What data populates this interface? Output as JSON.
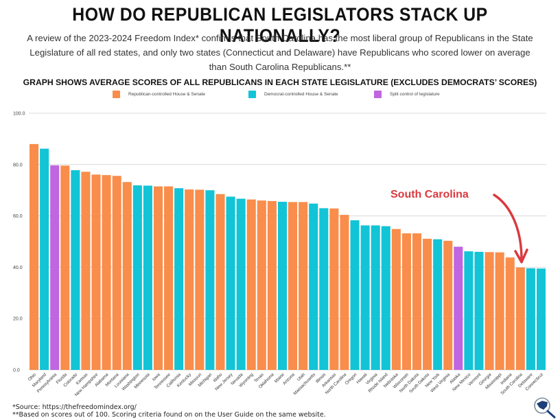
{
  "header": {
    "title": "HOW DO REPUBLICAN LEGISLATORS STACK UP NATIONALLY?",
    "intro": "A review of the 2023-2024 Freedom Index* confirms that South Carolina has the most liberal group of Republicans in the State Legislature of all red states, and only two states (Connecticut and Delaware) have Republicans who scored lower on average than South Carolina Republicans.**",
    "subtitle": "GRAPH SHOWS AVERAGE SCORES OF ALL REPUBLICANS IN EACH STATE LEGISLATURE (EXCLUDES DEMOCRATS’ SCORES)"
  },
  "legend": [
    {
      "key": "R",
      "label": "Republican-controlled House & Senate",
      "color": "#F98D4B"
    },
    {
      "key": "D",
      "label": "Democrat-controlled House & Senate",
      "color": "#12C4D6"
    },
    {
      "key": "S",
      "label": "Split control of legislature",
      "color": "#C066E0"
    }
  ],
  "annotation": {
    "label": "South Carolina",
    "color": "#D93A3F",
    "target": "South Carolina"
  },
  "footer": {
    "source": "*Source: https://thefreedomindex.org/",
    "note": "**Based on scores out of 100. Scoring criteria found on on the User Guide on the same website."
  },
  "logo": {
    "icon": "south-carolina-magnifier-icon"
  },
  "chart_data": {
    "type": "bar",
    "title": "HOW DO REPUBLICAN LEGISLATORS STACK UP NATIONALLY?",
    "xlabel": "",
    "ylabel": "",
    "ylim": [
      0,
      100
    ],
    "yticks": [
      "0.0",
      "20.0",
      "40.0",
      "60.0",
      "80.0",
      "100.0"
    ],
    "grid": true,
    "legend_position": "top-center",
    "categories": [
      "Ohio",
      "Maryland",
      "Pennsylvania",
      "Florida",
      "Colorado",
      "Kansas",
      "New Hampshire",
      "Alabama",
      "Montana",
      "Louisiana",
      "Washington",
      "Minnesota",
      "Iowa",
      "Tennessee",
      "California",
      "Kentucky",
      "Missouri",
      "Michigan",
      "Idaho",
      "New Jersey",
      "Nevada",
      "Wyoming",
      "Texas",
      "Oklahoma",
      "Maine",
      "Arizona",
      "Utah",
      "Massachusetts",
      "Illinois",
      "Arkansas",
      "North Carolina",
      "Oregon",
      "Hawaii",
      "Virginia",
      "Rhode Island",
      "Nebraska",
      "Wisconsin",
      "North Dakota",
      "South Dakota",
      "New York",
      "West Virginia",
      "Alaska",
      "New Mexico",
      "Vermont",
      "Georgia",
      "Mississippi",
      "Indiana",
      "South Carolina",
      "Delaware",
      "Connecticut"
    ],
    "values": [
      88.0,
      86.2,
      79.7,
      79.6,
      77.8,
      77.2,
      76.1,
      75.9,
      75.6,
      73.2,
      71.9,
      71.8,
      71.5,
      71.5,
      70.8,
      70.3,
      70.2,
      70.0,
      68.5,
      67.5,
      66.7,
      66.4,
      66.0,
      65.8,
      65.5,
      65.4,
      65.4,
      64.8,
      63.0,
      62.9,
      60.4,
      58.3,
      56.3,
      56.3,
      56.0,
      54.9,
      53.2,
      53.2,
      51.1,
      50.9,
      50.3,
      48.0,
      46.2,
      46.0,
      45.9,
      45.8,
      43.8,
      39.9,
      39.6,
      39.5
    ],
    "control": [
      "R",
      "D",
      "S",
      "R",
      "D",
      "R",
      "R",
      "R",
      "R",
      "R",
      "D",
      "D",
      "R",
      "R",
      "D",
      "R",
      "R",
      "D",
      "R",
      "D",
      "D",
      "R",
      "R",
      "R",
      "D",
      "R",
      "R",
      "D",
      "D",
      "R",
      "R",
      "D",
      "D",
      "D",
      "D",
      "R",
      "R",
      "R",
      "R",
      "D",
      "R",
      "S",
      "D",
      "D",
      "R",
      "R",
      "R",
      "R",
      "D",
      "D"
    ]
  }
}
